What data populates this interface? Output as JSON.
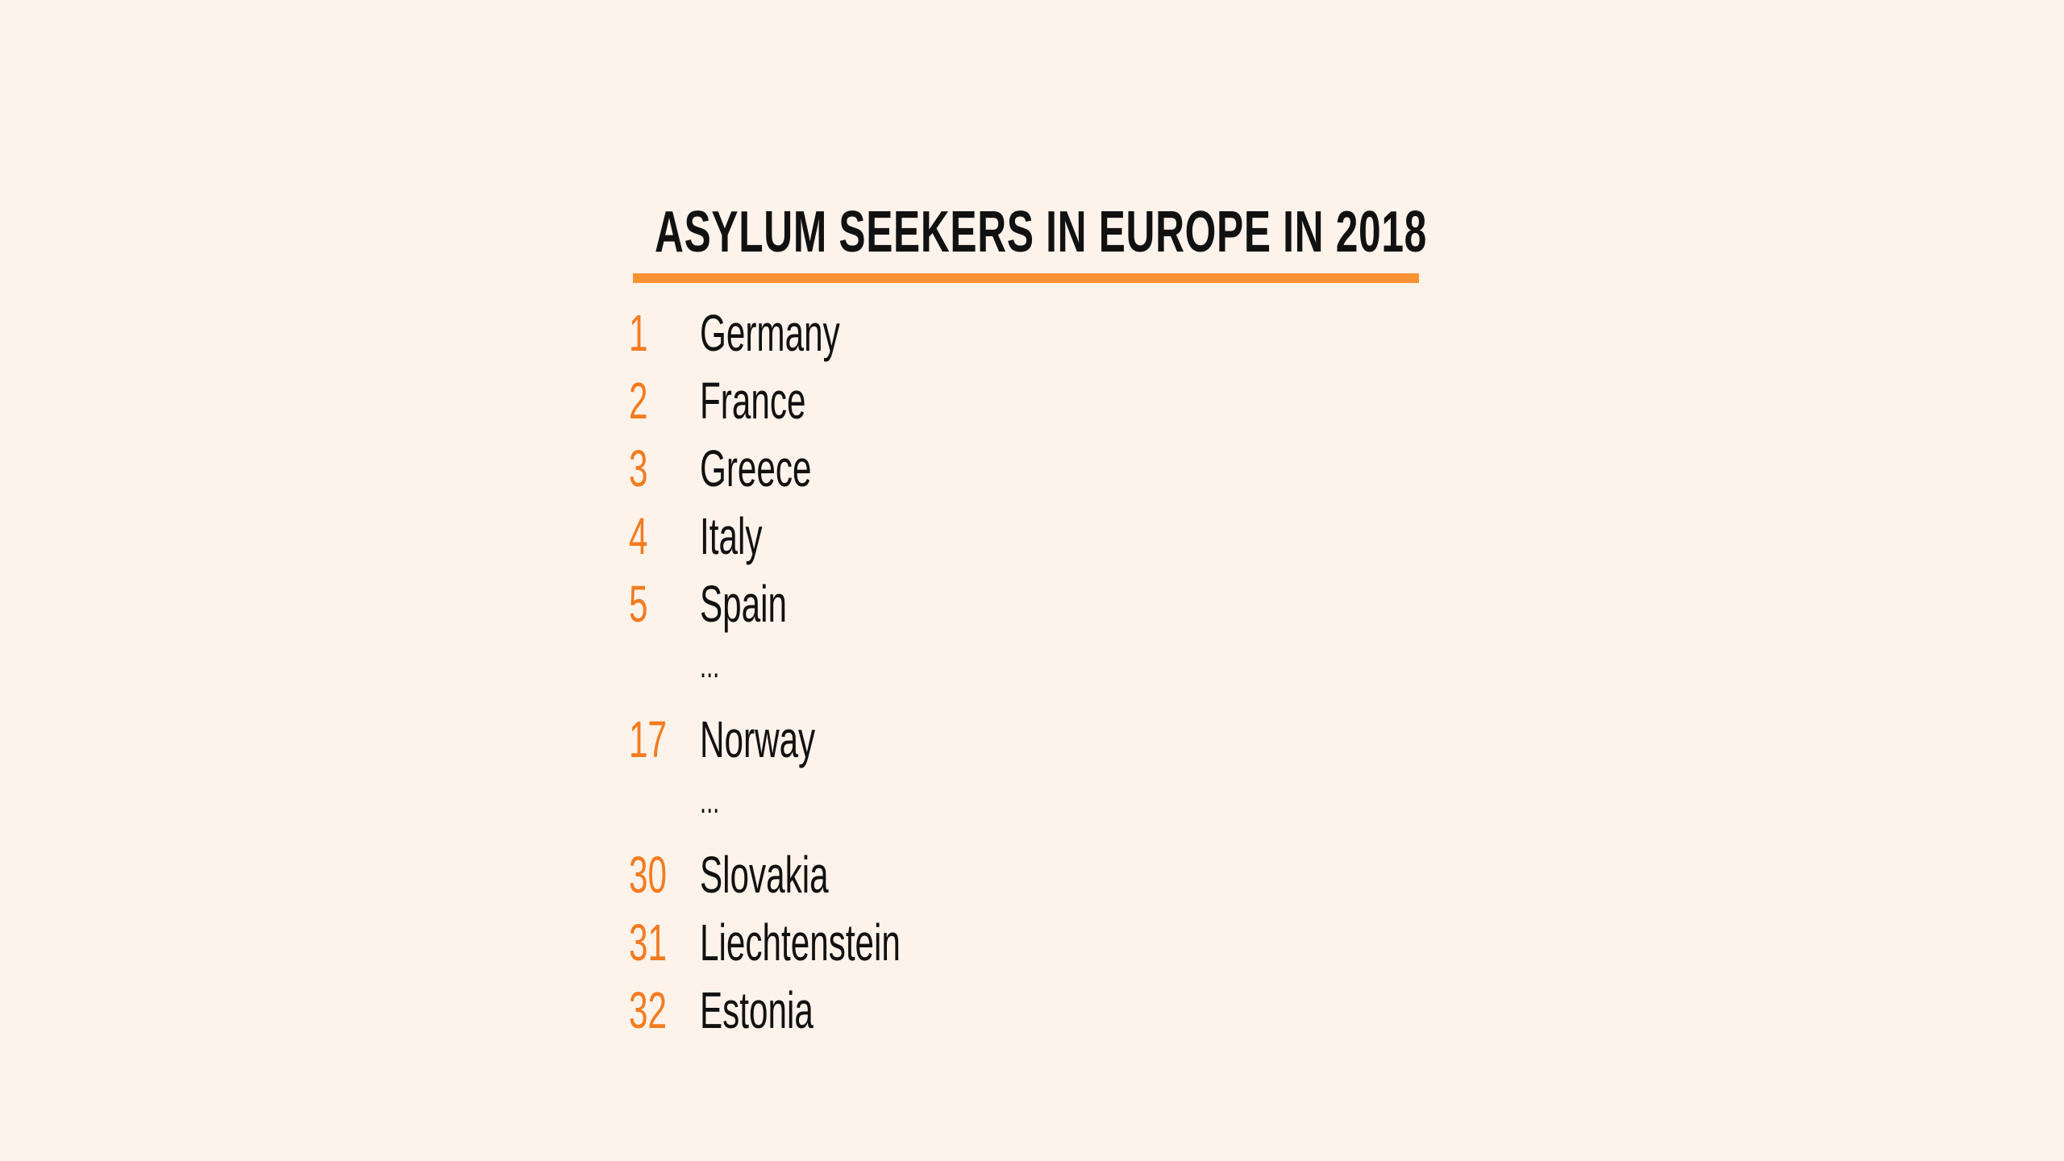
{
  "title": "ASYLUM SEEKERS IN EUROPE IN 2018",
  "colors": {
    "background": "#FDF3EA",
    "accent": "#F99233",
    "rank": "#F47B20",
    "text": "#111111"
  },
  "rows": [
    {
      "rank": "1",
      "country": "Germany"
    },
    {
      "rank": "2",
      "country": "France"
    },
    {
      "rank": "3",
      "country": "Greece"
    },
    {
      "rank": "4",
      "country": "Italy"
    },
    {
      "rank": "5",
      "country": "Spain"
    },
    {
      "rank": "",
      "country": "..."
    },
    {
      "rank": "17",
      "country": "Norway"
    },
    {
      "rank": "",
      "country": "..."
    },
    {
      "rank": "30",
      "country": "Slovakia"
    },
    {
      "rank": "31",
      "country": "Liechtenstein"
    },
    {
      "rank": "32",
      "country": "Estonia"
    }
  ]
}
